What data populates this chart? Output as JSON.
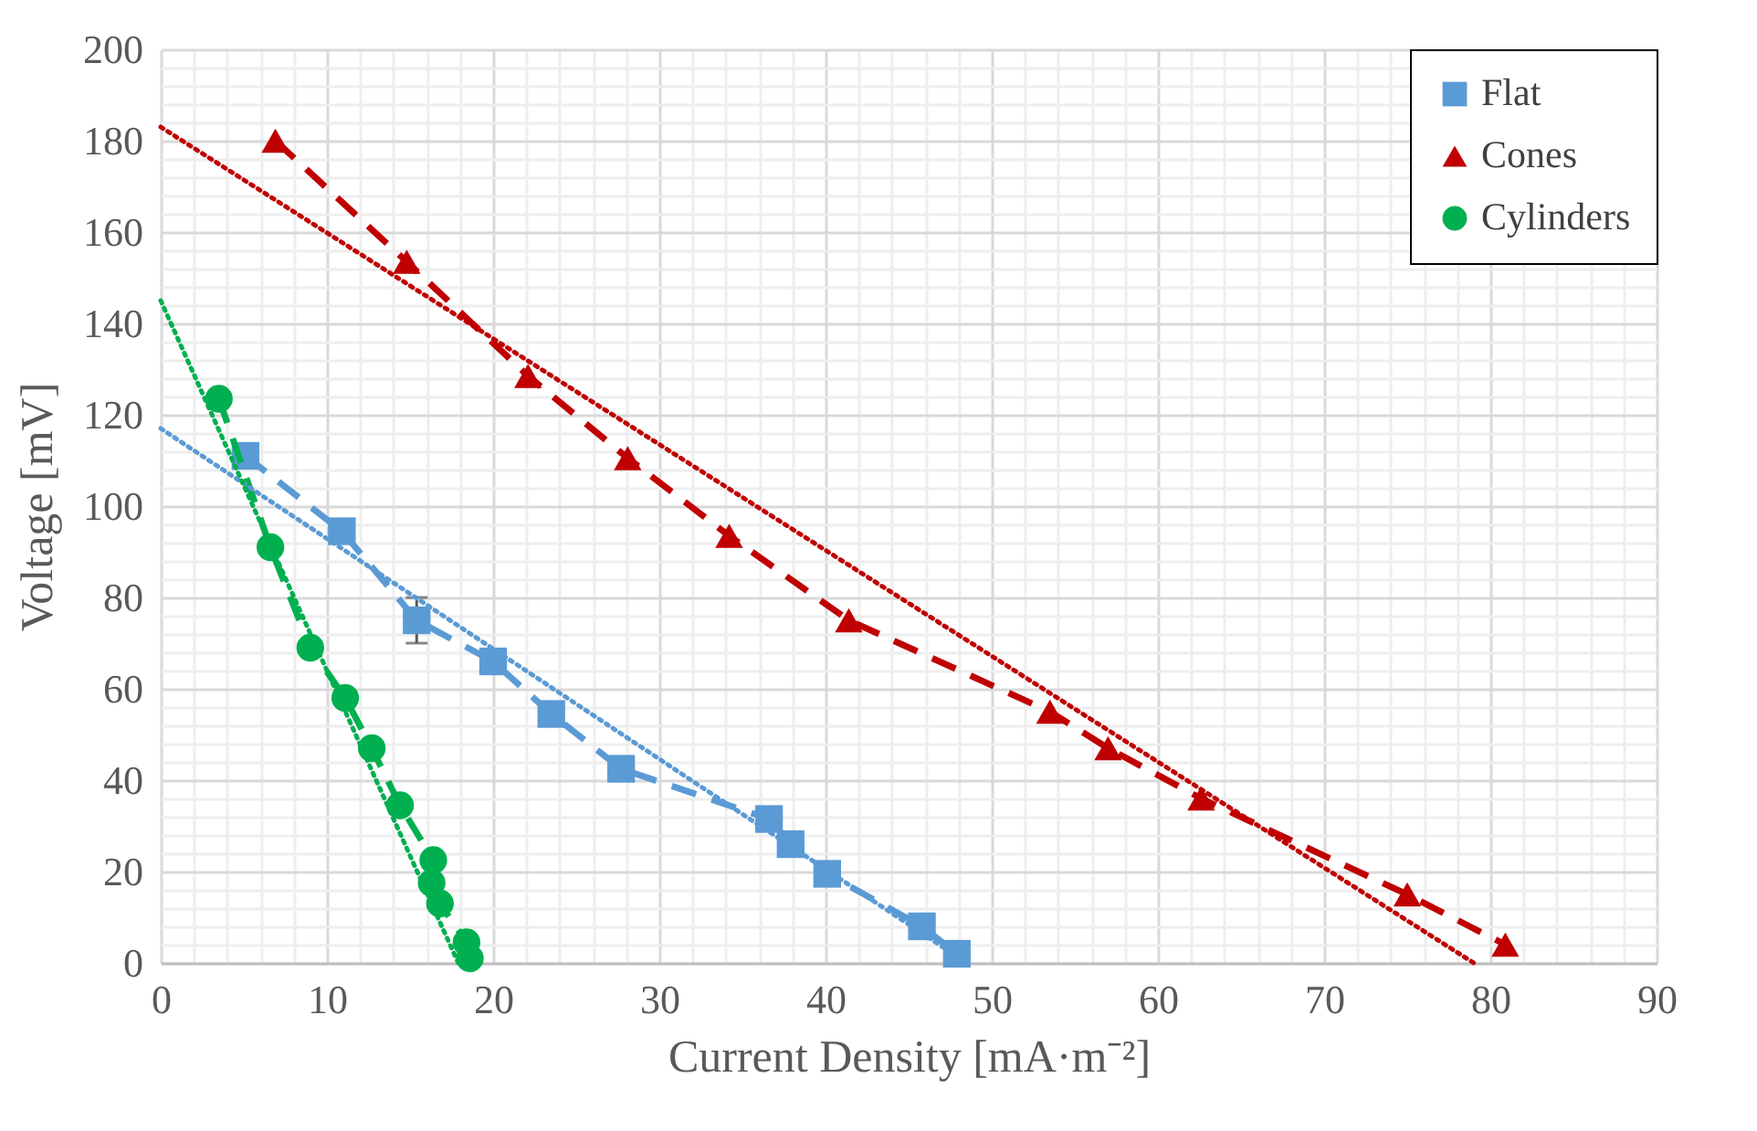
{
  "chart_data": {
    "type": "line",
    "xlabel": "Current Density [mA·m⁻²]",
    "ylabel": "Voltage [mV]",
    "xlim": [
      0,
      90
    ],
    "xticks": [
      0,
      10,
      20,
      30,
      40,
      50,
      60,
      70,
      80,
      90
    ],
    "ylim": [
      0,
      200
    ],
    "yticks": [
      0,
      20,
      40,
      60,
      80,
      100,
      120,
      140,
      160,
      180,
      200
    ],
    "grid": true,
    "legend": "top right",
    "line_style": "dashed",
    "series": [
      {
        "name": "Flat",
        "color": "#5b9bd5",
        "marker": "square",
        "x": [
          5.1,
          10.9,
          15.4,
          20,
          23.5,
          27.7,
          36.6,
          37.9,
          40.1,
          45.8,
          47.9
        ],
        "values": [
          111,
          94.5,
          75,
          66,
          54.5,
          42.5,
          31.5,
          26,
          19.5,
          8,
          2
        ],
        "errors": [
          null,
          null,
          5,
          null,
          null,
          null,
          null,
          null,
          null,
          null,
          null
        ]
      },
      {
        "name": "Cones",
        "color": "#c00000",
        "marker": "triangle",
        "x": [
          6.9,
          14.8,
          22.1,
          28.1,
          34.2,
          41.4,
          53.5,
          57,
          62.6,
          75,
          80.9
        ],
        "values": [
          180,
          153.5,
          128.5,
          110.5,
          93.5,
          75,
          55,
          47,
          36,
          15,
          4
        ]
      },
      {
        "name": "Cylinders",
        "color": "#00b050",
        "marker": "circle",
        "x": [
          3.5,
          6.6,
          9,
          11.1,
          12.7,
          14.4,
          16.4,
          16.3,
          16.8,
          18.4,
          18.6
        ],
        "values": [
          123.5,
          91,
          69,
          58,
          47,
          34.5,
          22.5,
          17.5,
          13,
          4.5,
          1
        ]
      },
      {
        "type": "line",
        "color": "#5b9bd5",
        "line_style": "dotted",
        "marker": "none",
        "x": [
          0,
          48.5
        ],
        "values": [
          117,
          0
        ]
      },
      {
        "type": "line",
        "color": "#c00000",
        "line_style": "dotted",
        "marker": "none",
        "x": [
          0,
          79
        ],
        "values": [
          183,
          0
        ]
      },
      {
        "type": "line",
        "color": "#00b050",
        "line_style": "dotted",
        "marker": "none",
        "x": [
          0,
          17.9
        ],
        "values": [
          145,
          0
        ]
      }
    ]
  }
}
